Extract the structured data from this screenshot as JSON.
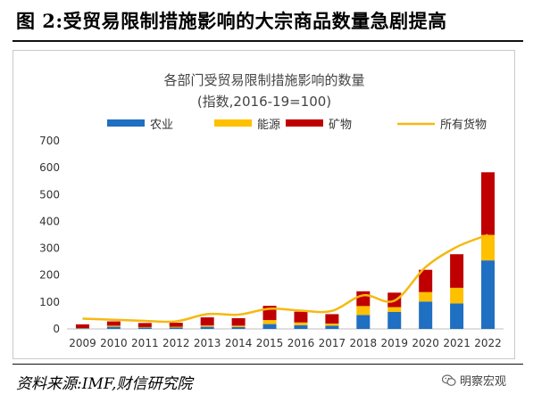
{
  "figure_title": "图 2:受贸易限制措施影响的大宗商品数量急剧提高",
  "source_note": "资料来源:IMF,财信研究院",
  "watermark": {
    "text": "明察宏观",
    "icon": "wechat-icon"
  },
  "chart_data": {
    "type": "bar",
    "stacked": true,
    "title": "各部门受贸易限制措施影响的数量",
    "subtitle": "(指数,2016-19=100)",
    "xlabel": "",
    "ylabel": "",
    "ylim": [
      0,
      700
    ],
    "yticks": [
      0,
      100,
      200,
      300,
      400,
      500,
      600,
      700
    ],
    "grid": false,
    "legend_position": "top",
    "categories": [
      "2009",
      "2010",
      "2011",
      "2012",
      "2013",
      "2014",
      "2015",
      "2016",
      "2017",
      "2018",
      "2019",
      "2020",
      "2021",
      "2022"
    ],
    "series": [
      {
        "name": "农业",
        "kind": "bar",
        "color": "#1f6fc2",
        "values": [
          2,
          8,
          5,
          5,
          8,
          7,
          18,
          14,
          12,
          52,
          63,
          102,
          95,
          255
        ]
      },
      {
        "name": "能源",
        "kind": "bar",
        "color": "#ffc000",
        "values": [
          1,
          4,
          2,
          3,
          5,
          5,
          15,
          10,
          8,
          33,
          18,
          35,
          58,
          95
        ]
      },
      {
        "name": "矿物",
        "kind": "bar",
        "color": "#c00000",
        "values": [
          14,
          16,
          15,
          15,
          30,
          28,
          53,
          40,
          35,
          55,
          54,
          83,
          125,
          233
        ]
      },
      {
        "name": "所有货物",
        "kind": "line",
        "color": "#f5b90f",
        "values": [
          38,
          34,
          30,
          28,
          55,
          53,
          75,
          68,
          67,
          125,
          105,
          230,
          305,
          350
        ]
      }
    ]
  }
}
